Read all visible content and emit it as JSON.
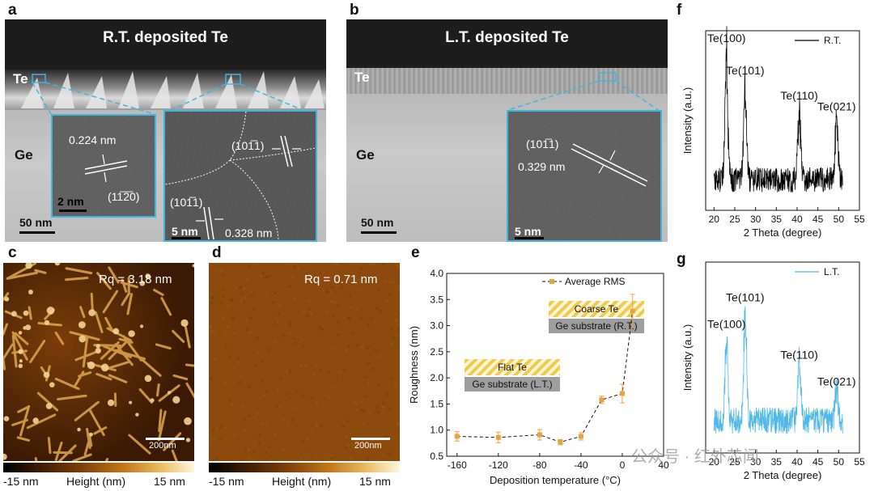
{
  "panels": {
    "a": {
      "label": "a",
      "title": "R.T. deposited Te",
      "film_label": "Te",
      "substrate_label": "Ge",
      "scale_main": "50 nm",
      "inset1": {
        "spacing": "0.224 nm",
        "plane": "(11̅2̅0)",
        "scale": "2 nm"
      },
      "inset2": {
        "plane1": "(101̅1)",
        "plane2": "(101̅1)",
        "spacing": "0.328 nm",
        "scale": "5 nm"
      }
    },
    "b": {
      "label": "b",
      "title": "L.T. deposited Te",
      "film_label": "Te",
      "substrate_label": "Ge",
      "scale_main": "50 nm",
      "inset": {
        "plane": "(101̅1)",
        "spacing": "0.329 nm",
        "scale": "5 nm"
      }
    },
    "c": {
      "label": "c",
      "rq": "Rq = 3.18 nm",
      "scale": "200nm",
      "colorbar": {
        "min": "-15 nm",
        "title": "Height (nm)",
        "max": "15 nm"
      }
    },
    "d": {
      "label": "d",
      "rq": "Rq = 0.71 nm",
      "scale": "200nm",
      "colorbar": {
        "min": "-15 nm",
        "title": "Height (nm)",
        "max": "15 nm"
      }
    },
    "e": {
      "label": "e"
    },
    "f": {
      "label": "f"
    },
    "g": {
      "label": "g"
    }
  },
  "watermark": "公众号 · 红外芯闻",
  "colors": {
    "accent": "#3fb5e0",
    "rms": "#e8a33c",
    "xrd_rt": "#000000",
    "xrd_lt": "#4fb8e8",
    "hatch": "#f2c94c"
  },
  "chart_data": [
    {
      "id": "e",
      "type": "line",
      "xlabel": "Deposition temperature (°C)",
      "ylabel": "Roughness (nm)",
      "xlim": [
        -170,
        40
      ],
      "ylim": [
        0.5,
        4.0
      ],
      "xticks": [
        -160,
        -120,
        -80,
        -40,
        0,
        40
      ],
      "yticks": [
        0.5,
        1.0,
        1.5,
        2.0,
        2.5,
        3.0,
        3.5,
        4.0
      ],
      "ytick_labels": [
        "0.5",
        "1.0",
        "1.5",
        "2.0",
        "2.5",
        "3.0",
        "3.5",
        "4.0"
      ],
      "series": [
        {
          "name": "Average RMS",
          "x": [
            -160,
            -120,
            -80,
            -60,
            -40,
            -20,
            0,
            10
          ],
          "y": [
            0.88,
            0.86,
            0.91,
            0.77,
            0.88,
            1.58,
            1.7,
            3.28
          ],
          "err": [
            0.09,
            0.1,
            0.1,
            0.05,
            0.07,
            0.07,
            0.18,
            0.32
          ]
        }
      ],
      "legend_position": "top-right",
      "annotations": [
        {
          "film": "Flat Te",
          "substrate": "Ge substrate (L.T.)"
        },
        {
          "film": "Coarse Te",
          "substrate": "Ge substrate (R.T.)"
        }
      ]
    },
    {
      "id": "f",
      "type": "line",
      "xlabel": "2 Theta (degree)",
      "ylabel": "Intensity (a.u.)",
      "xlim": [
        18,
        55
      ],
      "xticks": [
        20,
        25,
        30,
        35,
        40,
        45,
        50,
        55
      ],
      "series": [
        {
          "name": "R.T.",
          "color": "#000000"
        }
      ],
      "legend_position": "top-right",
      "peaks": [
        {
          "label": "Te(100)",
          "x": 23.0,
          "y": 0.8
        },
        {
          "label": "Te(101)",
          "x": 27.5,
          "y": 0.62
        },
        {
          "label": "Te(110)",
          "x": 40.5,
          "y": 0.48
        },
        {
          "label": "Te(021)",
          "x": 49.5,
          "y": 0.42
        }
      ]
    },
    {
      "id": "g",
      "type": "line",
      "xlabel": "2 Theta (degree)",
      "ylabel": "Intensity (a.u.)",
      "xlim": [
        18,
        55
      ],
      "xticks": [
        20,
        25,
        30,
        35,
        40,
        45,
        50,
        55
      ],
      "series": [
        {
          "name": "L.T.",
          "color": "#4fb8e8"
        }
      ],
      "legend_position": "top-right",
      "peaks": [
        {
          "label": "Te(100)",
          "x": 23.0,
          "y": 0.52
        },
        {
          "label": "Te(101)",
          "x": 27.5,
          "y": 0.66
        },
        {
          "label": "Te(110)",
          "x": 40.5,
          "y": 0.36
        },
        {
          "label": "Te(021)",
          "x": 49.5,
          "y": 0.22
        }
      ]
    }
  ]
}
